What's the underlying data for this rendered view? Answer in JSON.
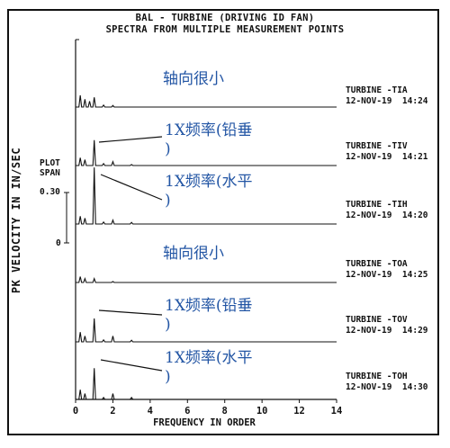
{
  "chart_data": {
    "type": "line",
    "title": "BAL - TURBINE (DRIVING ID FAN)",
    "subtitle": "SPECTRA FROM MULTIPLE MEASUREMENT POINTS",
    "xlabel": "FREQUENCY IN ORDER",
    "ylabel": "PK VELOCITY IN IN/SEC",
    "xlim": [
      0,
      14
    ],
    "x_ticks": [
      "0",
      "2",
      "4",
      "6",
      "8",
      "10",
      "12",
      "14"
    ],
    "plot_span_label": "PLOT\nSPAN",
    "plot_span_value": "0.30",
    "zero_label": "0",
    "ylim": [
      0,
      0.3
    ],
    "series": [
      {
        "name": "TURBINE -TIA",
        "date": "12-NOV-19",
        "time": "14:24",
        "peaks": [
          [
            0.25,
            0.06
          ],
          [
            0.5,
            0.04
          ],
          [
            0.75,
            0.03
          ],
          [
            1.0,
            0.05
          ],
          [
            1.5,
            0.01
          ],
          [
            2.0,
            0.008
          ]
        ]
      },
      {
        "name": "TURBINE -TIV",
        "date": "12-NOV-19",
        "time": "14:21",
        "peaks": [
          [
            0.25,
            0.04
          ],
          [
            0.5,
            0.03
          ],
          [
            1.0,
            0.13
          ],
          [
            1.5,
            0.01
          ],
          [
            2.0,
            0.02
          ],
          [
            3.0,
            0.005
          ]
        ]
      },
      {
        "name": "TURBINE -TIH",
        "date": "12-NOV-19",
        "time": "14:20",
        "peaks": [
          [
            0.25,
            0.04
          ],
          [
            0.5,
            0.03
          ],
          [
            1.0,
            0.29
          ],
          [
            1.5,
            0.01
          ],
          [
            2.0,
            0.02
          ],
          [
            3.0,
            0.008
          ]
        ]
      },
      {
        "name": "TURBINE -TOA",
        "date": "12-NOV-19",
        "time": "14:25",
        "peaks": [
          [
            0.25,
            0.03
          ],
          [
            0.5,
            0.02
          ],
          [
            1.0,
            0.02
          ],
          [
            2.0,
            0.005
          ]
        ]
      },
      {
        "name": "TURBINE -TOV",
        "date": "12-NOV-19",
        "time": "14:29",
        "peaks": [
          [
            0.25,
            0.05
          ],
          [
            0.5,
            0.03
          ],
          [
            1.0,
            0.12
          ],
          [
            1.5,
            0.01
          ],
          [
            2.0,
            0.03
          ],
          [
            3.0,
            0.008
          ]
        ]
      },
      {
        "name": "TURBINE -TOH",
        "date": "12-NOV-19",
        "time": "14:30",
        "peaks": [
          [
            0.25,
            0.05
          ],
          [
            0.5,
            0.03
          ],
          [
            1.0,
            0.16
          ],
          [
            1.5,
            0.01
          ],
          [
            2.0,
            0.03
          ],
          [
            3.0,
            0.01
          ]
        ]
      }
    ],
    "annotations": [
      {
        "text": "轴向很小"
      },
      {
        "text": "1X频率(铅垂\n)"
      },
      {
        "text": "1X频率(水平\n)"
      },
      {
        "text": "轴向很小"
      },
      {
        "text": "1X频率(铅垂\n)"
      },
      {
        "text": "1X频率(水平\n)"
      }
    ]
  },
  "colors": {
    "trace": "#111111",
    "annotation": "#2255a4"
  }
}
